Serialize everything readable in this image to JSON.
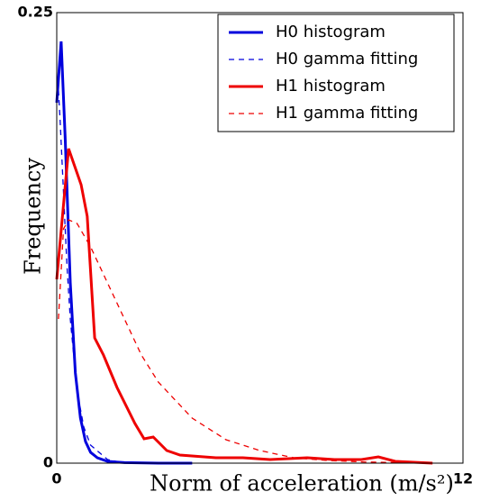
{
  "chart_data": {
    "type": "line",
    "xlabel": "Norm of acceleration (m/s²)",
    "ylabel": "Frequency",
    "xlim": [
      0,
      12
    ],
    "ylim": [
      0,
      0.25
    ],
    "xticks": [
      0,
      12
    ],
    "yticks": [
      0,
      0.25
    ],
    "legend": "upper right",
    "series": [
      {
        "name": "H0 histogram",
        "color": "#0000dd",
        "linestyle": "solid",
        "x": [
          0,
          0.13,
          0.25,
          0.4,
          0.55,
          0.7,
          0.85,
          1.0,
          1.2,
          1.5,
          2,
          3,
          4
        ],
        "values": [
          0.2,
          0.234,
          0.18,
          0.1,
          0.05,
          0.025,
          0.012,
          0.006,
          0.003,
          0.001,
          0.0003,
          0,
          0
        ]
      },
      {
        "name": "H0 gamma fitting",
        "color": "#0000dd",
        "linestyle": "dashed",
        "x": [
          0.05,
          0.1,
          0.2,
          0.3,
          0.4,
          0.6,
          0.8,
          1,
          1.5,
          2,
          3
        ],
        "values": [
          0.207,
          0.19,
          0.15,
          0.11,
          0.08,
          0.04,
          0.02,
          0.01,
          0.002,
          0,
          0
        ]
      },
      {
        "name": "H1 histogram",
        "color": "#ee0000",
        "linestyle": "solid",
        "x": [
          0,
          0.35,
          0.72,
          0.9,
          1.12,
          1.38,
          1.78,
          2.31,
          2.58,
          2.85,
          3.25,
          3.64,
          4.7,
          5.5,
          6.3,
          7.4,
          8.2,
          9,
          9.5,
          10,
          11.1
        ],
        "values": [
          0.102,
          0.1745,
          0.1545,
          0.137,
          0.0695,
          0.06,
          0.042,
          0.022,
          0.0135,
          0.0145,
          0.007,
          0.0045,
          0.003,
          0.003,
          0.002,
          0.003,
          0.002,
          0.002,
          0.0035,
          0.001,
          0
        ]
      },
      {
        "name": "H1 gamma fitting",
        "color": "#ee0000",
        "linestyle": "dashed",
        "x": [
          0.05,
          0.2,
          0.35,
          0.6,
          1,
          1.5,
          2,
          2.5,
          3,
          4,
          5,
          6,
          7,
          8,
          9,
          10
        ],
        "values": [
          0.08,
          0.13,
          0.135,
          0.133,
          0.12,
          0.1,
          0.08,
          0.06,
          0.045,
          0.025,
          0.013,
          0.007,
          0.003,
          0.0015,
          0.0007,
          0.0003
        ]
      }
    ]
  }
}
